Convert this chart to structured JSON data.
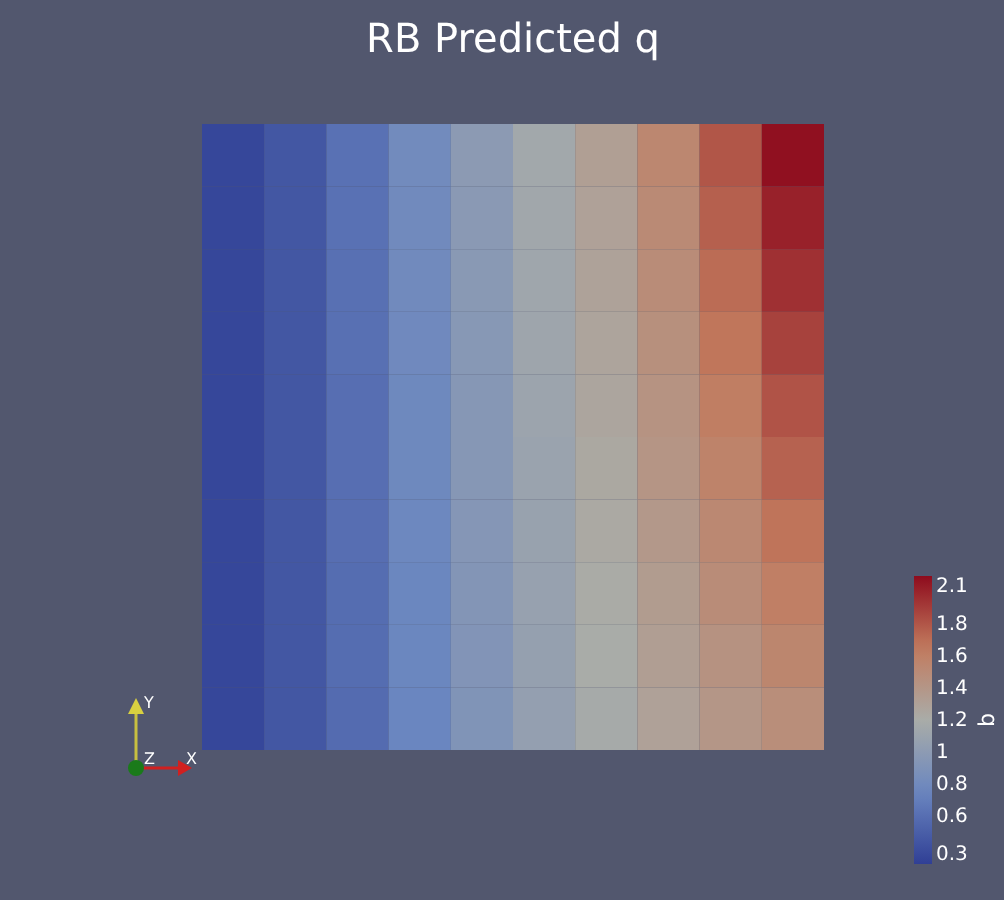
{
  "chart_data": {
    "type": "heatmap",
    "title": "RB Predicted q",
    "clabel": "q",
    "categories": [
      null,
      null,
      null,
      null,
      null,
      null,
      null,
      null,
      null,
      null
    ],
    "y_categories": [
      null,
      null,
      null,
      null,
      null,
      null,
      null,
      null,
      null,
      null
    ],
    "cells": [
      [
        0.35,
        0.45,
        0.62,
        0.81,
        0.99,
        1.15,
        1.32,
        1.54,
        1.8,
        2.08
      ],
      [
        0.35,
        0.45,
        0.62,
        0.8,
        0.98,
        1.14,
        1.3,
        1.51,
        1.76,
        2.01
      ],
      [
        0.35,
        0.45,
        0.61,
        0.8,
        0.97,
        1.13,
        1.29,
        1.49,
        1.71,
        1.95
      ],
      [
        0.35,
        0.45,
        0.61,
        0.79,
        0.96,
        1.12,
        1.27,
        1.46,
        1.67,
        1.88
      ],
      [
        0.35,
        0.45,
        0.6,
        0.78,
        0.95,
        1.11,
        1.26,
        1.43,
        1.62,
        1.81
      ],
      [
        0.35,
        0.45,
        0.6,
        0.78,
        0.95,
        1.09,
        1.24,
        1.41,
        1.58,
        1.75
      ],
      [
        0.35,
        0.45,
        0.6,
        0.77,
        0.94,
        1.08,
        1.23,
        1.38,
        1.53,
        1.68
      ],
      [
        0.35,
        0.45,
        0.59,
        0.76,
        0.93,
        1.07,
        1.21,
        1.35,
        1.49,
        1.61
      ],
      [
        0.35,
        0.45,
        0.59,
        0.76,
        0.92,
        1.06,
        1.2,
        1.33,
        1.44,
        1.55
      ],
      [
        0.35,
        0.45,
        0.58,
        0.75,
        0.91,
        1.05,
        1.18,
        1.3,
        1.4,
        1.48
      ]
    ],
    "clim": [
      0.3,
      2.1
    ],
    "cticks": [
      0.3,
      0.6,
      0.8,
      1,
      1.2,
      1.4,
      1.6,
      1.8,
      2.1
    ],
    "tick_labels": false,
    "annotations": [
      "X",
      "Y",
      "Z"
    ]
  }
}
